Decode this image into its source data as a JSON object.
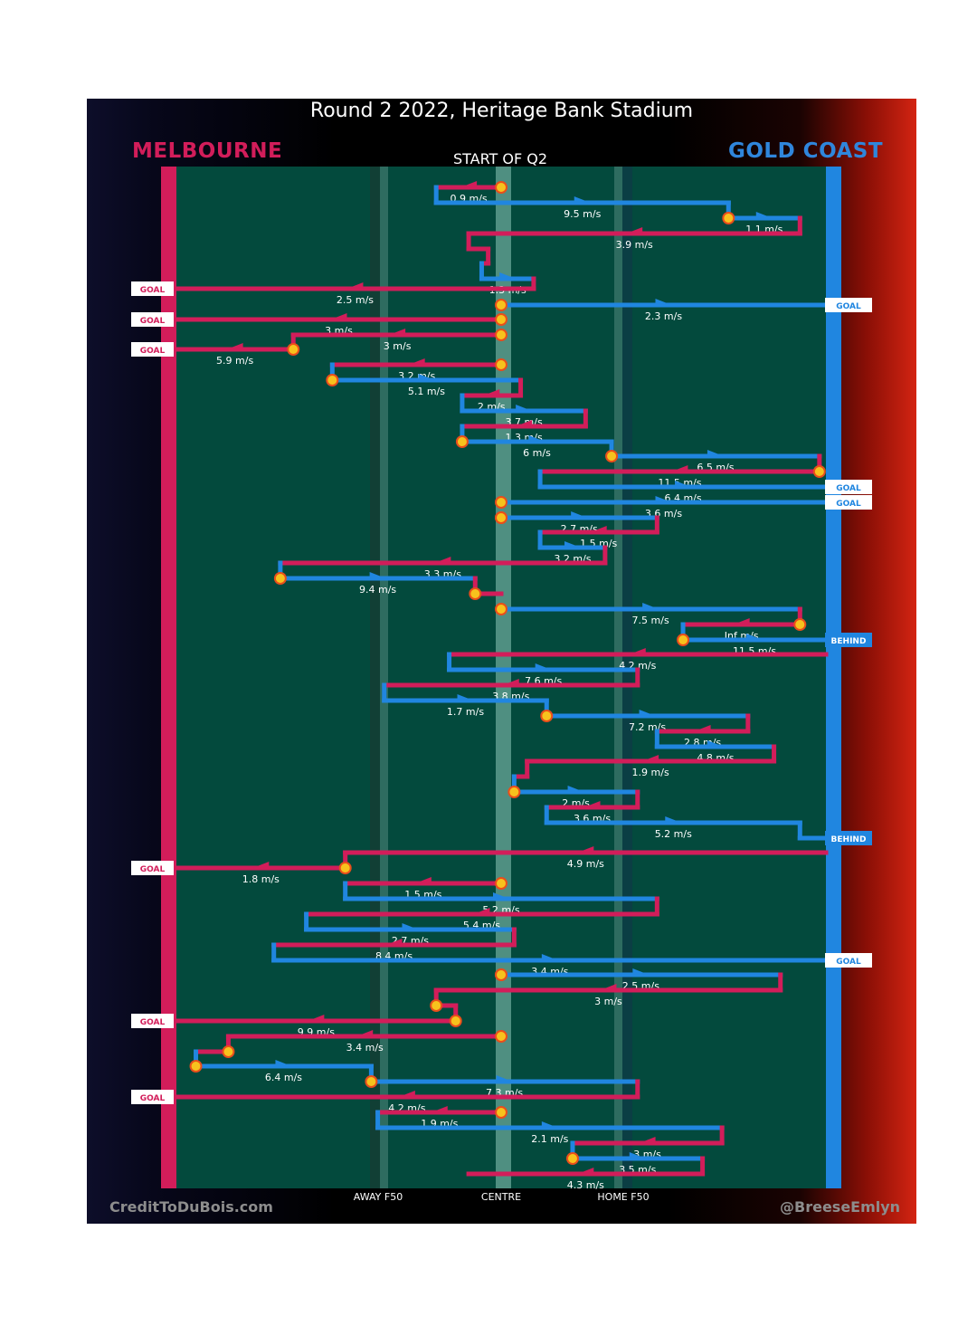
{
  "chart_data": {
    "type": "chain_chart",
    "title": "Round 2 2022, Heritage Bank Stadium",
    "home_team": {
      "name": "MELBOURNE",
      "color": "#d21d5a"
    },
    "away_team": {
      "name": "GOLD COAST",
      "color": "#2086e0"
    },
    "start_label": "START OF Q2",
    "field_labels": [
      "AWAY F50",
      "CENTRE",
      "HOME F50"
    ],
    "footer_left": "CreditToDuBois.com",
    "footer_right": "@BreeseEmlyn",
    "x_axis": {
      "min": 0,
      "max": 100,
      "description": "0 = Melbourne goal line, 100 = Gold Coast goal line"
    },
    "chains": [
      {
        "chain": 1,
        "segments": [
          {
            "team": "MEL",
            "y": 207,
            "x_from": 50,
            "x_to": 40,
            "speed": "0.9 m/s"
          },
          {
            "team": "GC",
            "y": 224,
            "x_from": 40,
            "x_to": 85,
            "speed": "9.5 m/s"
          },
          {
            "team": "GC",
            "y": 241,
            "x_from": 85,
            "x_to": 96,
            "speed": "1.1 m/s"
          },
          {
            "team": "MEL",
            "y": 258,
            "x_from": 96,
            "x_to": 45,
            "speed": "3.9 m/s"
          },
          {
            "team": "MEL",
            "y": 275,
            "x_from": 45,
            "x_to": 48,
            "speed": ""
          },
          {
            "team": "MEL",
            "y": 291,
            "x_from": 48,
            "x_to": 47,
            "speed": ""
          },
          {
            "team": "GC",
            "y": 308,
            "x_from": 47,
            "x_to": 55,
            "speed": "1.3 m/s"
          },
          {
            "team": "MEL",
            "y": 319,
            "x_from": 55,
            "x_to": 0,
            "speed": "2.5 m/s",
            "end": "GOAL"
          }
        ]
      },
      {
        "chain": 2,
        "segments": [
          {
            "team": "GC",
            "y": 337,
            "x_from": 50,
            "x_to": 100,
            "speed": "2.3 m/s",
            "end": "GOAL"
          }
        ]
      },
      {
        "chain": 3,
        "segments": [
          {
            "team": "MEL",
            "y": 353,
            "x_from": 50,
            "x_to": 0,
            "speed": "3 m/s",
            "end": "GOAL"
          }
        ]
      },
      {
        "chain": 4,
        "segments": [
          {
            "team": "MEL",
            "y": 370,
            "x_from": 50,
            "x_to": 18,
            "speed": "3 m/s"
          },
          {
            "team": "MEL",
            "y": 386,
            "x_from": 18,
            "x_to": 0,
            "speed": "5.9 m/s",
            "end": "GOAL"
          }
        ]
      },
      {
        "chain": 5,
        "segments": [
          {
            "team": "MEL",
            "y": 403,
            "x_from": 50,
            "x_to": 24,
            "speed": "3.2 m/s"
          },
          {
            "team": "GC",
            "y": 420,
            "x_from": 24,
            "x_to": 53,
            "speed": "5.1 m/s"
          },
          {
            "team": "MEL",
            "y": 437,
            "x_from": 53,
            "x_to": 44,
            "speed": "2 m/s"
          },
          {
            "team": "GC",
            "y": 454,
            "x_from": 44,
            "x_to": 63,
            "speed": "3.7 m/s"
          },
          {
            "team": "MEL",
            "y": 471,
            "x_from": 63,
            "x_to": 44,
            "speed": "1.3 m/s"
          },
          {
            "team": "GC",
            "y": 488,
            "x_from": 44,
            "x_to": 67,
            "speed": "6 m/s"
          },
          {
            "team": "GC",
            "y": 504,
            "x_from": 67,
            "x_to": 99,
            "speed": "6.5 m/s"
          },
          {
            "team": "MEL",
            "y": 521,
            "x_from": 99,
            "x_to": 56,
            "speed": "11.5 m/s"
          },
          {
            "team": "GC",
            "y": 538,
            "x_from": 56,
            "x_to": 100,
            "speed": "6.4 m/s",
            "end": "GOAL"
          }
        ]
      },
      {
        "chain": 6,
        "segments": [
          {
            "team": "GC",
            "y": 555,
            "x_from": 50,
            "x_to": 100,
            "speed": "3.6 m/s",
            "end": "GOAL"
          }
        ]
      },
      {
        "chain": 7,
        "segments": [
          {
            "team": "GC",
            "y": 572,
            "x_from": 50,
            "x_to": 74,
            "speed": "2.7 m/s"
          },
          {
            "team": "MEL",
            "y": 588,
            "x_from": 74,
            "x_to": 56,
            "speed": "1.5 m/s"
          },
          {
            "team": "GC",
            "y": 605,
            "x_from": 56,
            "x_to": 66,
            "speed": "3.2 m/s"
          },
          {
            "team": "MEL",
            "y": 622,
            "x_from": 66,
            "x_to": 16,
            "speed": "3.3 m/s"
          },
          {
            "team": "GC",
            "y": 639,
            "x_from": 16,
            "x_to": 46,
            "speed": "9.4 m/s"
          },
          {
            "team": "MEL",
            "y": 656,
            "x_from": 46,
            "x_to": 50,
            "speed": ""
          }
        ]
      },
      {
        "chain": 8,
        "segments": [
          {
            "team": "GC",
            "y": 673,
            "x_from": 50,
            "x_to": 96,
            "speed": "7.5 m/s"
          },
          {
            "team": "MEL",
            "y": 690,
            "x_from": 96,
            "x_to": 78,
            "speed": "Inf m/s"
          },
          {
            "team": "GC",
            "y": 707,
            "x_from": 78,
            "x_to": 100,
            "speed": "11.5 m/s",
            "end": "BEHIND"
          }
        ]
      },
      {
        "chain": 9,
        "segments": [
          {
            "team": "MEL",
            "y": 723,
            "x_from": 100,
            "x_to": 42,
            "speed": "4.2 m/s"
          },
          {
            "team": "GC",
            "y": 740,
            "x_from": 42,
            "x_to": 71,
            "speed": "7.6 m/s"
          },
          {
            "team": "MEL",
            "y": 757,
            "x_from": 71,
            "x_to": 32,
            "speed": "3.8 m/s"
          },
          {
            "team": "GC",
            "y": 774,
            "x_from": 32,
            "x_to": 57,
            "speed": "1.7 m/s"
          },
          {
            "team": "GC",
            "y": 791,
            "x_from": 57,
            "x_to": 88,
            "speed": "7.2 m/s"
          },
          {
            "team": "MEL",
            "y": 808,
            "x_from": 88,
            "x_to": 74,
            "speed": "2.8 m/s"
          },
          {
            "team": "GC",
            "y": 825,
            "x_from": 74,
            "x_to": 92,
            "speed": "4.8 m/s"
          },
          {
            "team": "MEL",
            "y": 841,
            "x_from": 92,
            "x_to": 54,
            "speed": "1.9 m/s"
          },
          {
            "team": "MEL",
            "y": 858,
            "x_from": 54,
            "x_to": 52,
            "speed": ""
          },
          {
            "team": "GC",
            "y": 875,
            "x_from": 52,
            "x_to": 71,
            "speed": "2 m/s"
          },
          {
            "team": "MEL",
            "y": 892,
            "x_from": 71,
            "x_to": 57,
            "speed": "3.6 m/s"
          },
          {
            "team": "GC",
            "y": 909,
            "x_from": 57,
            "x_to": 96,
            "speed": "5.2 m/s"
          },
          {
            "team": "GC",
            "y": 926,
            "x_from": 96,
            "x_to": 100,
            "speed": "",
            "end": "BEHIND"
          }
        ]
      },
      {
        "chain": 10,
        "segments": [
          {
            "team": "MEL",
            "y": 942,
            "x_from": 100,
            "x_to": 26,
            "speed": "4.9 m/s"
          },
          {
            "team": "MEL",
            "y": 959,
            "x_from": 26,
            "x_to": 0,
            "speed": "1.8 m/s",
            "end": "GOAL"
          }
        ]
      },
      {
        "chain": 11,
        "segments": [
          {
            "team": "MEL",
            "y": 976,
            "x_from": 50,
            "x_to": 26,
            "speed": "1.5 m/s"
          },
          {
            "team": "GC",
            "y": 993,
            "x_from": 26,
            "x_to": 74,
            "speed": "5.2 m/s"
          },
          {
            "team": "MEL",
            "y": 1010,
            "x_from": 74,
            "x_to": 20,
            "speed": "5.4 m/s"
          },
          {
            "team": "GC",
            "y": 1027,
            "x_from": 20,
            "x_to": 52,
            "speed": "2.7 m/s"
          },
          {
            "team": "MEL",
            "y": 1044,
            "x_from": 52,
            "x_to": 15,
            "speed": "8.4 m/s"
          },
          {
            "team": "GC",
            "y": 1061,
            "x_from": 15,
            "x_to": 100,
            "speed": "3.4 m/s",
            "end": "GOAL"
          }
        ]
      },
      {
        "chain": 12,
        "segments": [
          {
            "team": "GC",
            "y": 1077,
            "x_from": 50,
            "x_to": 93,
            "speed": "2.5 m/s"
          },
          {
            "team": "MEL",
            "y": 1094,
            "x_from": 93,
            "x_to": 40,
            "speed": "3 m/s"
          },
          {
            "team": "MEL",
            "y": 1111,
            "x_from": 40,
            "x_to": 43,
            "speed": ""
          },
          {
            "team": "MEL",
            "y": 1128,
            "x_from": 43,
            "x_to": 0,
            "speed": "9.9 m/s",
            "end": "GOAL"
          }
        ]
      },
      {
        "chain": 13,
        "segments": [
          {
            "team": "MEL",
            "y": 1145,
            "x_from": 50,
            "x_to": 8,
            "speed": "3.4 m/s"
          },
          {
            "team": "MEL",
            "y": 1162,
            "x_from": 8,
            "x_to": 3,
            "speed": ""
          },
          {
            "team": "GC",
            "y": 1178,
            "x_from": 3,
            "x_to": 30,
            "speed": "6.4 m/s"
          },
          {
            "team": "GC",
            "y": 1195,
            "x_from": 30,
            "x_to": 71,
            "speed": "7.3 m/s"
          },
          {
            "team": "MEL",
            "y": 1212,
            "x_from": 71,
            "x_to": 0,
            "speed": "4.2 m/s",
            "end": "GOAL"
          }
        ]
      },
      {
        "chain": 14,
        "segments": [
          {
            "team": "MEL",
            "y": 1229,
            "x_from": 50,
            "x_to": 31,
            "speed": "1.9 m/s"
          },
          {
            "team": "GC",
            "y": 1246,
            "x_from": 31,
            "x_to": 84,
            "speed": "2.1 m/s"
          },
          {
            "team": "MEL",
            "y": 1263,
            "x_from": 84,
            "x_to": 61,
            "speed": "3 m/s"
          },
          {
            "team": "GC",
            "y": 1280,
            "x_from": 61,
            "x_to": 81,
            "speed": "3.5 m/s"
          },
          {
            "team": "MEL",
            "y": 1297,
            "x_from": 81,
            "x_to": 45,
            "speed": "4.3 m/s"
          }
        ]
      }
    ]
  }
}
